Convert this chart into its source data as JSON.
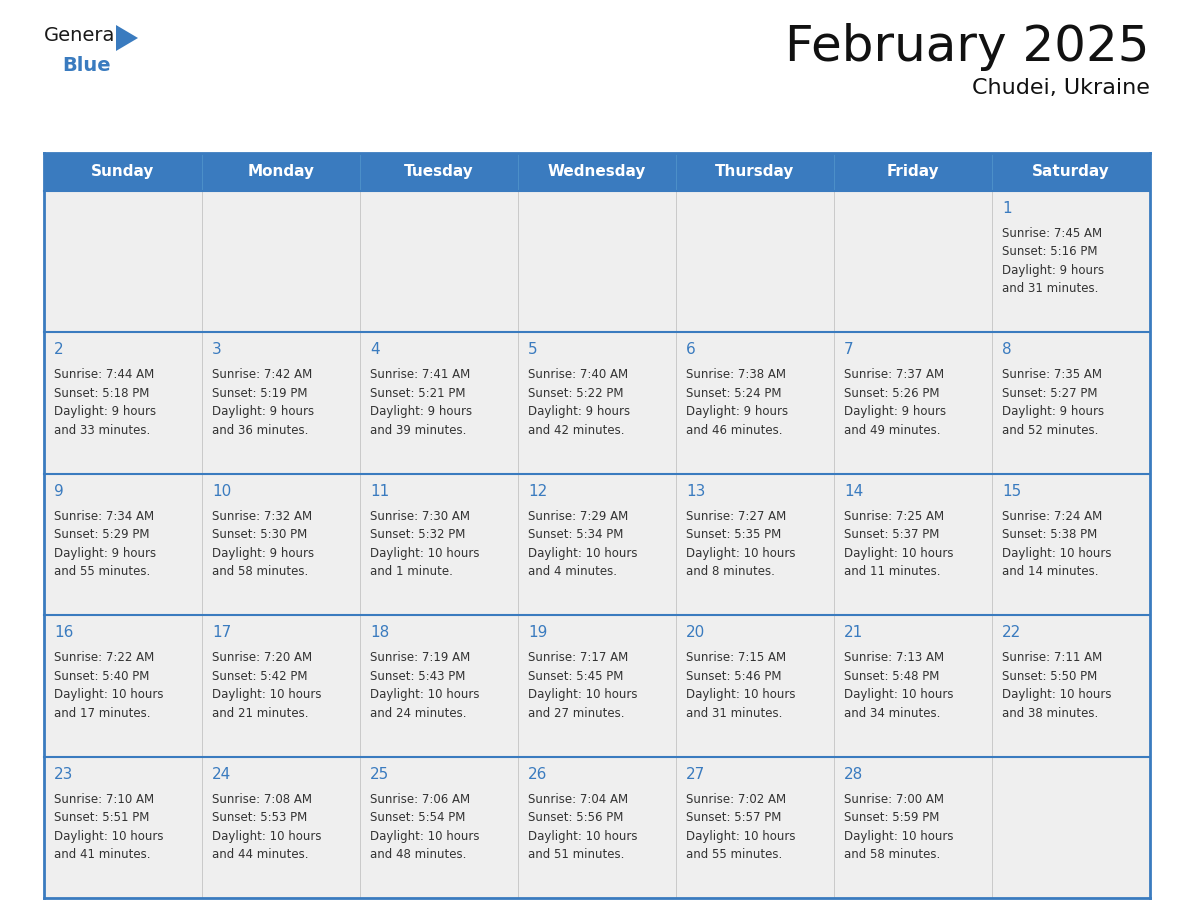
{
  "title": "February 2025",
  "subtitle": "Chudei, Ukraine",
  "header_color": "#3a7bbf",
  "header_text_color": "#ffffff",
  "cell_bg_color": "#efefef",
  "day_number_color": "#3a7bbf",
  "text_color": "#333333",
  "border_color": "#3a7bbf",
  "days_of_week": [
    "Sunday",
    "Monday",
    "Tuesday",
    "Wednesday",
    "Thursday",
    "Friday",
    "Saturday"
  ],
  "weeks": [
    [
      {
        "day": null,
        "info": null
      },
      {
        "day": null,
        "info": null
      },
      {
        "day": null,
        "info": null
      },
      {
        "day": null,
        "info": null
      },
      {
        "day": null,
        "info": null
      },
      {
        "day": null,
        "info": null
      },
      {
        "day": "1",
        "info": "Sunrise: 7:45 AM\nSunset: 5:16 PM\nDaylight: 9 hours\nand 31 minutes."
      }
    ],
    [
      {
        "day": "2",
        "info": "Sunrise: 7:44 AM\nSunset: 5:18 PM\nDaylight: 9 hours\nand 33 minutes."
      },
      {
        "day": "3",
        "info": "Sunrise: 7:42 AM\nSunset: 5:19 PM\nDaylight: 9 hours\nand 36 minutes."
      },
      {
        "day": "4",
        "info": "Sunrise: 7:41 AM\nSunset: 5:21 PM\nDaylight: 9 hours\nand 39 minutes."
      },
      {
        "day": "5",
        "info": "Sunrise: 7:40 AM\nSunset: 5:22 PM\nDaylight: 9 hours\nand 42 minutes."
      },
      {
        "day": "6",
        "info": "Sunrise: 7:38 AM\nSunset: 5:24 PM\nDaylight: 9 hours\nand 46 minutes."
      },
      {
        "day": "7",
        "info": "Sunrise: 7:37 AM\nSunset: 5:26 PM\nDaylight: 9 hours\nand 49 minutes."
      },
      {
        "day": "8",
        "info": "Sunrise: 7:35 AM\nSunset: 5:27 PM\nDaylight: 9 hours\nand 52 minutes."
      }
    ],
    [
      {
        "day": "9",
        "info": "Sunrise: 7:34 AM\nSunset: 5:29 PM\nDaylight: 9 hours\nand 55 minutes."
      },
      {
        "day": "10",
        "info": "Sunrise: 7:32 AM\nSunset: 5:30 PM\nDaylight: 9 hours\nand 58 minutes."
      },
      {
        "day": "11",
        "info": "Sunrise: 7:30 AM\nSunset: 5:32 PM\nDaylight: 10 hours\nand 1 minute."
      },
      {
        "day": "12",
        "info": "Sunrise: 7:29 AM\nSunset: 5:34 PM\nDaylight: 10 hours\nand 4 minutes."
      },
      {
        "day": "13",
        "info": "Sunrise: 7:27 AM\nSunset: 5:35 PM\nDaylight: 10 hours\nand 8 minutes."
      },
      {
        "day": "14",
        "info": "Sunrise: 7:25 AM\nSunset: 5:37 PM\nDaylight: 10 hours\nand 11 minutes."
      },
      {
        "day": "15",
        "info": "Sunrise: 7:24 AM\nSunset: 5:38 PM\nDaylight: 10 hours\nand 14 minutes."
      }
    ],
    [
      {
        "day": "16",
        "info": "Sunrise: 7:22 AM\nSunset: 5:40 PM\nDaylight: 10 hours\nand 17 minutes."
      },
      {
        "day": "17",
        "info": "Sunrise: 7:20 AM\nSunset: 5:42 PM\nDaylight: 10 hours\nand 21 minutes."
      },
      {
        "day": "18",
        "info": "Sunrise: 7:19 AM\nSunset: 5:43 PM\nDaylight: 10 hours\nand 24 minutes."
      },
      {
        "day": "19",
        "info": "Sunrise: 7:17 AM\nSunset: 5:45 PM\nDaylight: 10 hours\nand 27 minutes."
      },
      {
        "day": "20",
        "info": "Sunrise: 7:15 AM\nSunset: 5:46 PM\nDaylight: 10 hours\nand 31 minutes."
      },
      {
        "day": "21",
        "info": "Sunrise: 7:13 AM\nSunset: 5:48 PM\nDaylight: 10 hours\nand 34 minutes."
      },
      {
        "day": "22",
        "info": "Sunrise: 7:11 AM\nSunset: 5:50 PM\nDaylight: 10 hours\nand 38 minutes."
      }
    ],
    [
      {
        "day": "23",
        "info": "Sunrise: 7:10 AM\nSunset: 5:51 PM\nDaylight: 10 hours\nand 41 minutes."
      },
      {
        "day": "24",
        "info": "Sunrise: 7:08 AM\nSunset: 5:53 PM\nDaylight: 10 hours\nand 44 minutes."
      },
      {
        "day": "25",
        "info": "Sunrise: 7:06 AM\nSunset: 5:54 PM\nDaylight: 10 hours\nand 48 minutes."
      },
      {
        "day": "26",
        "info": "Sunrise: 7:04 AM\nSunset: 5:56 PM\nDaylight: 10 hours\nand 51 minutes."
      },
      {
        "day": "27",
        "info": "Sunrise: 7:02 AM\nSunset: 5:57 PM\nDaylight: 10 hours\nand 55 minutes."
      },
      {
        "day": "28",
        "info": "Sunrise: 7:00 AM\nSunset: 5:59 PM\nDaylight: 10 hours\nand 58 minutes."
      },
      {
        "day": null,
        "info": null
      }
    ]
  ]
}
